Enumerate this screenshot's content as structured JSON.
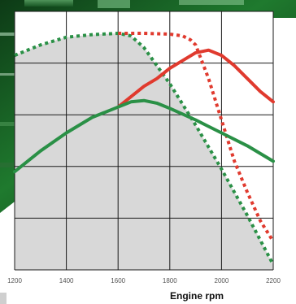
{
  "chart_data": {
    "type": "line",
    "xlabel": "Engine rpm",
    "ylabel": "",
    "xlim": [
      1200,
      2200
    ],
    "x_ticks": [
      1200,
      1400,
      1600,
      1800,
      2000,
      2200
    ],
    "x_tick_labels": [
      "1200",
      "1400",
      "1600",
      "1800",
      "2000",
      "2200"
    ],
    "y_gridlines": 5,
    "grid": true,
    "legend": "none",
    "shaded_area": "grey region beneath the dotted green curve",
    "series": [
      {
        "color": "#2a9046",
        "style": "dotted",
        "points": [
          [
            1200,
            0.83
          ],
          [
            1300,
            0.87
          ],
          [
            1400,
            0.9
          ],
          [
            1500,
            0.91
          ],
          [
            1600,
            0.915
          ],
          [
            1650,
            0.905
          ],
          [
            1700,
            0.86
          ],
          [
            1800,
            0.72
          ],
          [
            1900,
            0.56
          ],
          [
            2000,
            0.39
          ],
          [
            2100,
            0.21
          ],
          [
            2200,
            0.02
          ]
        ]
      },
      {
        "color": "#e03a2e",
        "style": "dotted",
        "points": [
          [
            1600,
            0.915
          ],
          [
            1700,
            0.915
          ],
          [
            1800,
            0.912
          ],
          [
            1850,
            0.905
          ],
          [
            1880,
            0.89
          ],
          [
            1900,
            0.87
          ],
          [
            1950,
            0.74
          ],
          [
            2000,
            0.58
          ],
          [
            2050,
            0.42
          ],
          [
            2100,
            0.3
          ],
          [
            2150,
            0.19
          ],
          [
            2200,
            0.11
          ]
        ]
      },
      {
        "color": "#e03a2e",
        "style": "solid",
        "points": [
          [
            1600,
            0.63
          ],
          [
            1650,
            0.67
          ],
          [
            1700,
            0.71
          ],
          [
            1750,
            0.74
          ],
          [
            1800,
            0.78
          ],
          [
            1850,
            0.81
          ],
          [
            1900,
            0.84
          ],
          [
            1950,
            0.85
          ],
          [
            2000,
            0.83
          ],
          [
            2050,
            0.79
          ],
          [
            2100,
            0.74
          ],
          [
            2150,
            0.69
          ],
          [
            2200,
            0.65
          ]
        ]
      },
      {
        "color": "#2a9046",
        "style": "solid",
        "points": [
          [
            1200,
            0.38
          ],
          [
            1300,
            0.46
          ],
          [
            1400,
            0.53
          ],
          [
            1500,
            0.59
          ],
          [
            1600,
            0.63
          ],
          [
            1650,
            0.65
          ],
          [
            1700,
            0.655
          ],
          [
            1750,
            0.645
          ],
          [
            1800,
            0.625
          ],
          [
            1900,
            0.58
          ],
          [
            2000,
            0.53
          ],
          [
            2100,
            0.48
          ],
          [
            2200,
            0.42
          ]
        ]
      }
    ]
  }
}
